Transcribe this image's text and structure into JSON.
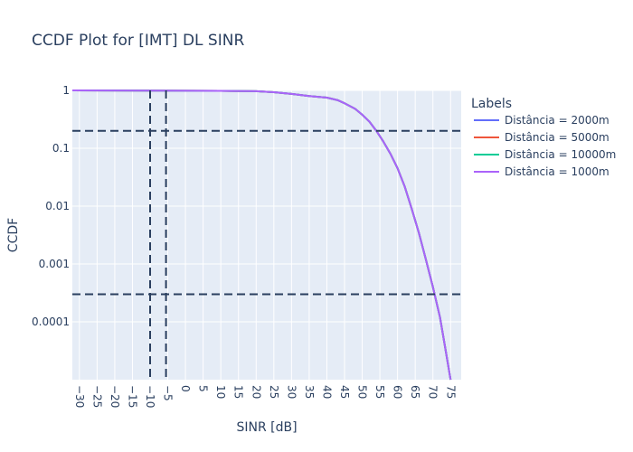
{
  "chart_data": {
    "type": "line",
    "title": "CCDF Plot for [IMT] DL SINR",
    "xlabel": "SINR [dB]",
    "ylabel": "CCDF",
    "y_scale": "log",
    "xlim": [
      -32,
      78
    ],
    "ylim": [
      1e-05,
      1
    ],
    "grid": true,
    "legend_title": "Labels",
    "legend_position": "right",
    "x_ticks": [
      -30,
      -25,
      -20,
      -15,
      -10,
      -5,
      0,
      5,
      10,
      15,
      20,
      25,
      30,
      35,
      40,
      45,
      50,
      55,
      60,
      65,
      70,
      75
    ],
    "x_tick_labels": [
      "−30",
      "−25",
      "−20",
      "−15",
      "−10",
      "−5",
      "0",
      "5",
      "10",
      "15",
      "20",
      "25",
      "30",
      "35",
      "40",
      "45",
      "50",
      "55",
      "60",
      "65",
      "70",
      "75"
    ],
    "y_ticks": [
      1,
      0.1,
      0.01,
      0.001,
      0.0001
    ],
    "y_tick_labels": [
      "1",
      "0.1",
      "0.01",
      "0.001",
      "0.0001"
    ],
    "x": [
      -32,
      -20,
      -10,
      0,
      10,
      20,
      25,
      30,
      35,
      40,
      43,
      45,
      48,
      50,
      52,
      54,
      56,
      58,
      60,
      62,
      64,
      66,
      68,
      70,
      72,
      73.5,
      75
    ],
    "series": [
      {
        "name": "Distância = 2000m",
        "color": "#636efa",
        "values": [
          1,
          0.995,
          0.99,
          0.985,
          0.98,
          0.97,
          0.93,
          0.87,
          0.8,
          0.75,
          0.68,
          0.6,
          0.48,
          0.38,
          0.29,
          0.2,
          0.13,
          0.08,
          0.045,
          0.022,
          0.009,
          0.0035,
          0.0012,
          0.0004,
          0.00012,
          3.5e-05,
          1e-05
        ]
      },
      {
        "name": "Distância = 5000m",
        "color": "#ef553b",
        "values": [
          1,
          0.995,
          0.99,
          0.985,
          0.98,
          0.97,
          0.93,
          0.87,
          0.8,
          0.75,
          0.68,
          0.6,
          0.48,
          0.38,
          0.29,
          0.2,
          0.13,
          0.08,
          0.045,
          0.022,
          0.009,
          0.0035,
          0.0012,
          0.0004,
          0.00012,
          3.5e-05,
          1e-05
        ]
      },
      {
        "name": "Distância = 10000m",
        "color": "#00cc96",
        "values": [
          1,
          0.995,
          0.99,
          0.985,
          0.98,
          0.97,
          0.93,
          0.87,
          0.8,
          0.75,
          0.68,
          0.6,
          0.48,
          0.38,
          0.29,
          0.2,
          0.13,
          0.08,
          0.045,
          0.022,
          0.009,
          0.0035,
          0.0012,
          0.0004,
          0.00012,
          3.5e-05,
          1e-05
        ]
      },
      {
        "name": "Distância = 1000m",
        "color": "#ab63fa",
        "values": [
          1,
          0.995,
          0.99,
          0.985,
          0.98,
          0.97,
          0.93,
          0.87,
          0.8,
          0.75,
          0.68,
          0.6,
          0.48,
          0.38,
          0.29,
          0.2,
          0.13,
          0.08,
          0.045,
          0.022,
          0.009,
          0.0035,
          0.0012,
          0.0004,
          0.00012,
          3.5e-05,
          1e-05
        ]
      }
    ],
    "reference_lines": {
      "color": "#2a3f5f",
      "vertical_x": [
        -10,
        -5.5
      ],
      "horizontal_y": [
        0.2,
        0.0003
      ]
    }
  }
}
